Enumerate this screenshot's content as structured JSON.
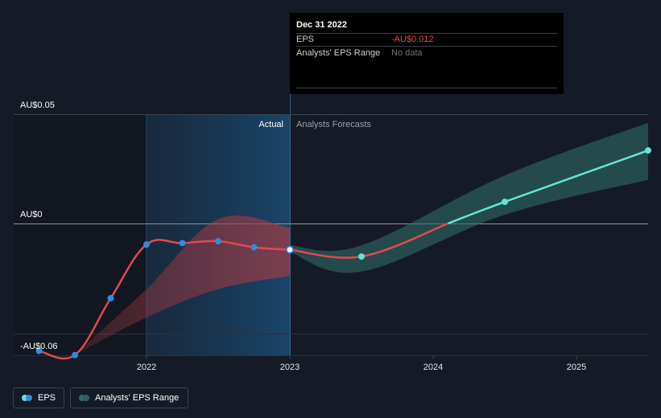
{
  "chart_data": {
    "type": "line",
    "title": "",
    "y_axis": {
      "labels": [
        "AU$0.05",
        "AU$0",
        "-AU$0.06"
      ],
      "ylim": [
        -0.06,
        0.05
      ]
    },
    "x_axis": {
      "ticks": [
        "2022",
        "2023",
        "2024",
        "2025"
      ],
      "xlim": [
        2021.0,
        2025.5
      ]
    },
    "markers": {
      "actual": "Actual",
      "forecast": "Analysts Forecasts",
      "divider_x": 2023.0
    },
    "series": [
      {
        "name": "EPS (actual)",
        "color": "#e5484d",
        "points": [
          [
            2021.25,
            -0.0583
          ],
          [
            2021.5,
            -0.0602
          ],
          [
            2021.75,
            -0.0342
          ],
          [
            2022.0,
            -0.0096
          ],
          [
            2022.25,
            -0.009
          ],
          [
            2022.5,
            -0.0081
          ],
          [
            2022.75,
            -0.0109
          ],
          [
            2023.0,
            -0.012
          ]
        ]
      },
      {
        "name": "EPS (forecast)",
        "color_negative": "#e5484d",
        "color_positive": "#5ee7d8",
        "points": [
          [
            2023.0,
            -0.012
          ],
          [
            2023.5,
            -0.0151
          ],
          [
            2024.5,
            0.0099
          ],
          [
            2025.5,
            0.0334
          ]
        ]
      }
    ],
    "range_past": {
      "name": "Analysts' EPS Range (past)",
      "upper": [
        [
          2021.5,
          -0.06
        ],
        [
          2022.0,
          -0.03
        ],
        [
          2022.5,
          0.002
        ],
        [
          2023.0,
          -0.002
        ]
      ],
      "lower": [
        [
          2021.5,
          -0.06
        ],
        [
          2022.0,
          -0.043
        ],
        [
          2022.5,
          -0.03
        ],
        [
          2023.0,
          -0.024
        ]
      ]
    },
    "range_forecast": {
      "name": "Analysts' EPS Range (forecast)",
      "upper": [
        [
          2023.0,
          -0.01
        ],
        [
          2023.5,
          -0.01
        ],
        [
          2024.5,
          0.022
        ],
        [
          2025.5,
          0.046
        ]
      ],
      "lower": [
        [
          2023.0,
          -0.013
        ],
        [
          2023.5,
          -0.022
        ],
        [
          2024.5,
          0.004
        ],
        [
          2025.5,
          0.02
        ]
      ]
    },
    "tooltip": {
      "date": "Dec 31 2022",
      "rows": [
        {
          "label": "EPS",
          "value": "-AU$0.012",
          "value_color": "#e5484d"
        },
        {
          "label": "Analysts' EPS Range",
          "value": "No data",
          "value_color": "#6b7280"
        }
      ]
    },
    "legend": [
      {
        "label": "EPS"
      },
      {
        "label": "Analysts' EPS Range"
      }
    ]
  },
  "colors": {
    "background": "#151b26",
    "eps_negative": "#e5484d",
    "eps_positive": "#5ee7d8",
    "point_actual": "#2f8be0",
    "range_past_fill": "#a63a42",
    "range_forecast_fill": "#2e6b66"
  }
}
